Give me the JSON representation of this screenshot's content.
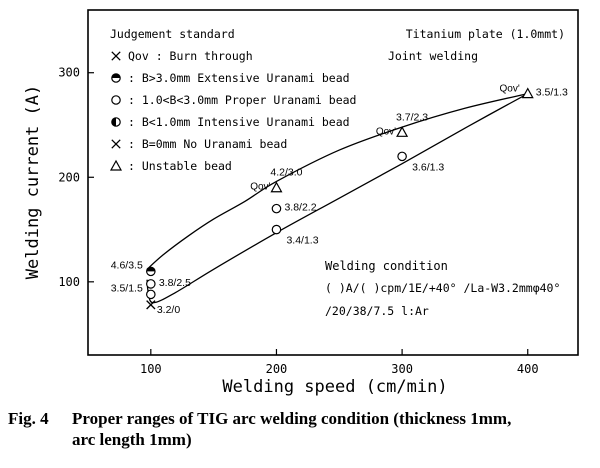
{
  "figure": {
    "caption_number": "Fig. 4",
    "caption_line1": "Proper ranges of TIG arc welding condition (thickness 1mm,",
    "caption_line2": "arc length 1mm)"
  },
  "chart_data": {
    "type": "scatter",
    "title": "",
    "xlabel": "Welding speed (cm/min)",
    "ylabel": "Welding current (A)",
    "xlim": [
      50,
      440
    ],
    "ylim": [
      30,
      360
    ],
    "xticks": [
      100,
      200,
      300,
      400
    ],
    "yticks": [
      100,
      200,
      300
    ],
    "grid": false,
    "top_right_note": [
      "Titanium plate (1.0mmt)",
      "Joint welding"
    ],
    "legend": {
      "placement": "top-left",
      "title": "Judgement standard",
      "entries": [
        {
          "symbol": "x",
          "text": "Qov : Burn through"
        },
        {
          "symbol": "circle-top-half",
          "text": ": B>3.0mm  Extensive Uranami bead"
        },
        {
          "symbol": "circle-open",
          "text": ": 1.0<B<3.0mm  Proper Uranami bead"
        },
        {
          "symbol": "circle-left-half",
          "text": ": B<1.0mm  Intensive Uranami bead"
        },
        {
          "symbol": "x",
          "text": ": B=0mm  No Uranami bead"
        },
        {
          "symbol": "triangle-open",
          "text": ": Unstable bead"
        }
      ]
    },
    "welding_condition": {
      "title": "Welding condition",
      "line1": "( )A/( )cpm/1E/+40° /La-W3.2mmφ40°",
      "line2": "/20/38/7.5 l:Ar"
    },
    "points": [
      {
        "x": 100,
        "y": 110,
        "symbol": "circle-top-half",
        "label": "4.6/3.5",
        "label_pos": "left"
      },
      {
        "x": 100,
        "y": 98,
        "symbol": "circle-open",
        "label": "3.8/2.5",
        "label_pos": "right"
      },
      {
        "x": 100,
        "y": 88,
        "symbol": "circle-open",
        "label": "3.5/1.5",
        "label_pos": "left"
      },
      {
        "x": 100,
        "y": 78,
        "symbol": "x",
        "label": "3.2/0",
        "label_pos": "right"
      },
      {
        "x": 200,
        "y": 190,
        "symbol": "triangle-open",
        "label": "4.2/3.0",
        "label_pos": "above",
        "qov": "Qov'"
      },
      {
        "x": 200,
        "y": 170,
        "symbol": "circle-open",
        "label": "3.8/2.2",
        "label_pos": "right"
      },
      {
        "x": 200,
        "y": 150,
        "symbol": "circle-open",
        "label": "3.4/1.3",
        "label_pos": "below-right"
      },
      {
        "x": 300,
        "y": 243,
        "symbol": "triangle-open",
        "label": "3.7/2.3",
        "label_pos": "above",
        "qov": "Qov'"
      },
      {
        "x": 300,
        "y": 220,
        "symbol": "circle-open",
        "label": "3.6/1.3",
        "label_pos": "below-right"
      },
      {
        "x": 400,
        "y": 280,
        "symbol": "triangle-open",
        "label": "3.5/1.3",
        "label_pos": "right",
        "qov": "Qov'"
      }
    ],
    "boundary_upper": [
      [
        97,
        112
      ],
      [
        110,
        126
      ],
      [
        130,
        144
      ],
      [
        150,
        160
      ],
      [
        175,
        177
      ],
      [
        200,
        196
      ],
      [
        250,
        226
      ],
      [
        300,
        248
      ],
      [
        350,
        266
      ],
      [
        400,
        280
      ]
    ],
    "boundary_lower": [
      [
        97,
        102
      ],
      [
        98,
        90
      ],
      [
        102,
        80
      ],
      [
        120,
        90
      ],
      [
        150,
        112
      ],
      [
        200,
        147
      ],
      [
        250,
        180
      ],
      [
        300,
        213
      ],
      [
        350,
        247
      ],
      [
        400,
        280
      ]
    ]
  }
}
